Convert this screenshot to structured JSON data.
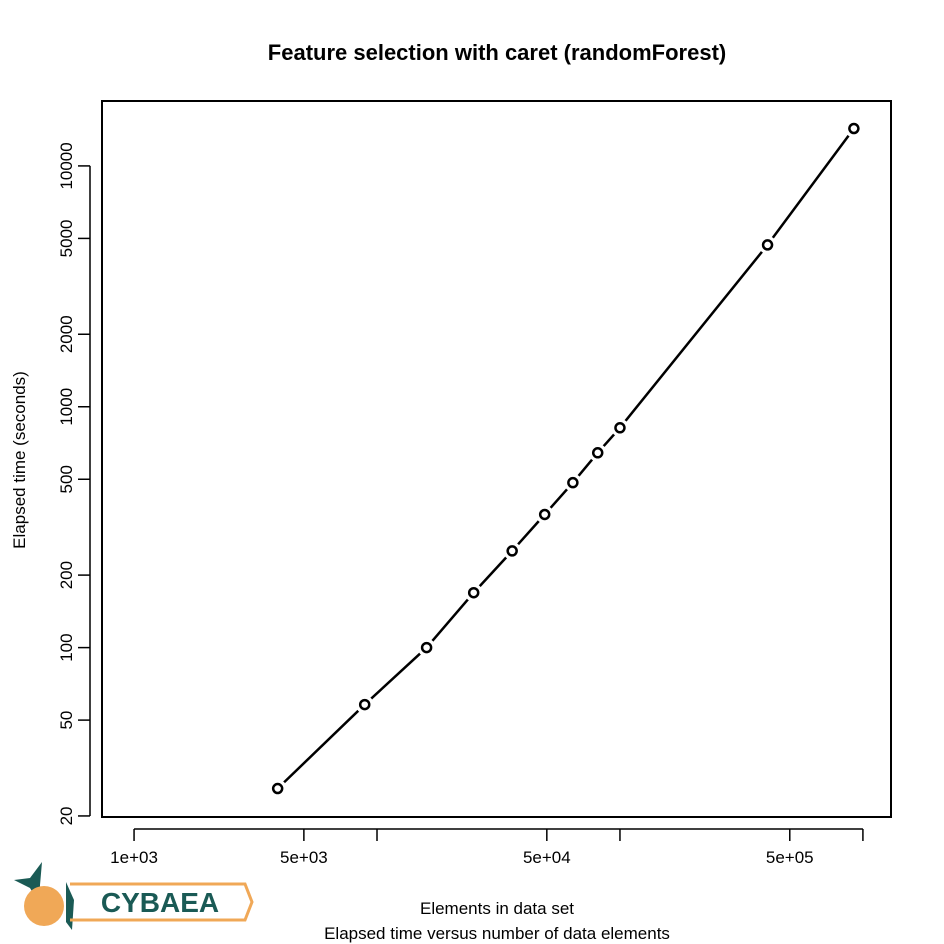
{
  "chart_data": {
    "type": "line",
    "title": "Feature selection with caret (randomForest)",
    "x_label": "Elements in data set",
    "subtitle": "Elapsed time versus number of data elements",
    "y_label": "Elapsed time (seconds)",
    "logo": "CYBAEA",
    "x": [
      3900,
      8900,
      16000,
      25000,
      36000,
      49000,
      64000,
      81000,
      100000,
      405000,
      918000
    ],
    "values": [
      26,
      58,
      100,
      169,
      252,
      357,
      484,
      644,
      818,
      4700,
      14300
    ],
    "color": "#000000",
    "markers": true,
    "xlog": true,
    "ylog": true,
    "xlim": [
      738,
      1305000
    ],
    "ylim": [
      19.8,
      18600
    ],
    "xticks": [
      {
        "value": 1000,
        "label": "1e+03"
      },
      {
        "value": 5000,
        "label": "5e+03"
      },
      {
        "value": 10000,
        "label": null
      },
      {
        "value": 50000,
        "label": "5e+04"
      },
      {
        "value": 100000,
        "label": null
      },
      {
        "value": 500000,
        "label": "5e+05"
      },
      {
        "value": 1000000,
        "label": null
      }
    ],
    "yticks": [
      20,
      50,
      100,
      200,
      500,
      1000,
      2000,
      5000,
      10000
    ]
  }
}
